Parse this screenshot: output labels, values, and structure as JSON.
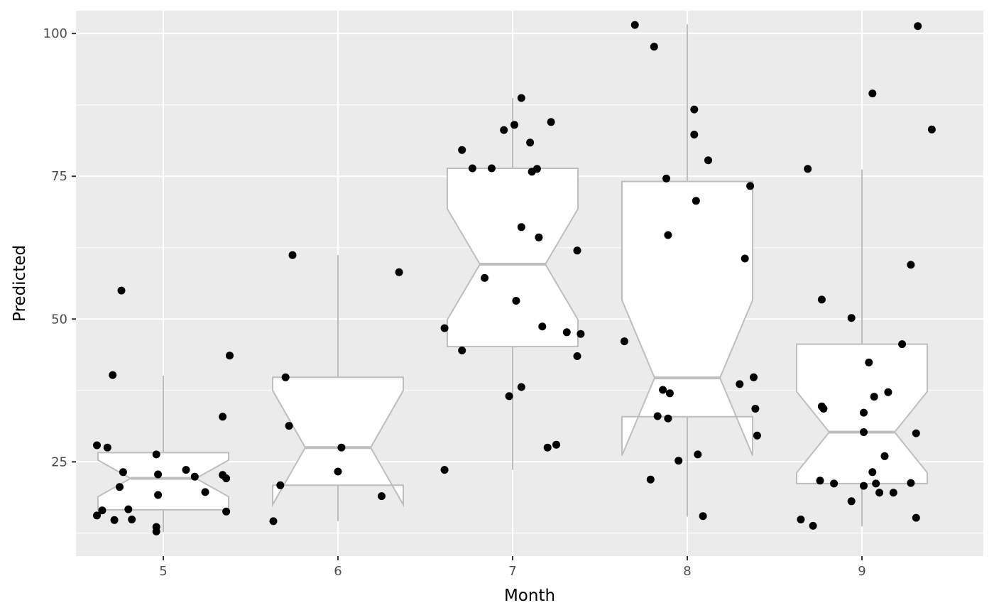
{
  "chart_data": {
    "type": "boxplot",
    "notched": true,
    "title": "",
    "xlabel": "Month",
    "ylabel": "Predicted",
    "categories": [
      "5",
      "6",
      "7",
      "8",
      "9"
    ],
    "y_ticks": [
      25,
      50,
      75,
      100
    ],
    "ylim": [
      8.5,
      104
    ],
    "grid": true,
    "colors": {
      "panel_background": "#ebebeb",
      "grid": "#ffffff",
      "box_fill": "#ffffff",
      "box_stroke": "#bebebe",
      "points": "#000000"
    },
    "boxes": [
      {
        "category": "5",
        "whisker_low": 12.7,
        "q1": 16.6,
        "median": 22.1,
        "q3": 26.6,
        "whisker_high": 40.1,
        "notch_low": 18.9,
        "notch_high": 25.3
      },
      {
        "category": "6",
        "whisker_low": 14.6,
        "q1": 20.9,
        "median": 27.5,
        "q3": 39.8,
        "whisker_high": 61.2,
        "notch_low": 17.5,
        "notch_high": 37.5
      },
      {
        "category": "7",
        "whisker_low": 23.6,
        "q1": 45.2,
        "median": 59.6,
        "q3": 76.4,
        "whisker_high": 88.7,
        "notch_low": 49.9,
        "notch_high": 69.3
      },
      {
        "category": "8",
        "whisker_low": 15.4,
        "q1": 32.9,
        "median": 39.7,
        "q3": 74.1,
        "whisker_high": 101.6,
        "notch_low": 26.1,
        "notch_high": 53.3
      },
      {
        "category": "9",
        "whisker_low": 13.7,
        "q1": 21.2,
        "median": 30.2,
        "q3": 45.6,
        "whisker_high": 76.2,
        "notch_low": 23.1,
        "notch_high": 37.3
      }
    ],
    "points": [
      {
        "category": "5",
        "x": 4.62,
        "y": 27.9
      },
      {
        "category": "5",
        "x": 4.68,
        "y": 27.5
      },
      {
        "category": "5",
        "x": 4.62,
        "y": 15.6
      },
      {
        "category": "5",
        "x": 4.65,
        "y": 16.5
      },
      {
        "category": "5",
        "x": 4.72,
        "y": 14.8
      },
      {
        "category": "5",
        "x": 4.71,
        "y": 40.2
      },
      {
        "category": "5",
        "x": 4.76,
        "y": 55.0
      },
      {
        "category": "5",
        "x": 4.75,
        "y": 20.6
      },
      {
        "category": "5",
        "x": 4.77,
        "y": 23.2
      },
      {
        "category": "5",
        "x": 4.8,
        "y": 16.7
      },
      {
        "category": "5",
        "x": 4.82,
        "y": 14.9
      },
      {
        "category": "5",
        "x": 4.96,
        "y": 26.3
      },
      {
        "category": "5",
        "x": 4.97,
        "y": 22.8
      },
      {
        "category": "5",
        "x": 4.97,
        "y": 19.2
      },
      {
        "category": "5",
        "x": 4.96,
        "y": 13.6
      },
      {
        "category": "5",
        "x": 4.96,
        "y": 12.8
      },
      {
        "category": "5",
        "x": 5.13,
        "y": 23.6
      },
      {
        "category": "5",
        "x": 5.18,
        "y": 22.4
      },
      {
        "category": "5",
        "x": 5.24,
        "y": 19.7
      },
      {
        "category": "5",
        "x": 5.34,
        "y": 32.9
      },
      {
        "category": "5",
        "x": 5.34,
        "y": 22.7
      },
      {
        "category": "5",
        "x": 5.36,
        "y": 22.1
      },
      {
        "category": "5",
        "x": 5.36,
        "y": 16.3
      },
      {
        "category": "5",
        "x": 5.38,
        "y": 43.6
      },
      {
        "category": "6",
        "x": 5.63,
        "y": 14.6
      },
      {
        "category": "6",
        "x": 5.67,
        "y": 20.9
      },
      {
        "category": "6",
        "x": 5.7,
        "y": 39.8
      },
      {
        "category": "6",
        "x": 5.72,
        "y": 31.3
      },
      {
        "category": "6",
        "x": 5.74,
        "y": 61.2
      },
      {
        "category": "6",
        "x": 6.0,
        "y": 23.3
      },
      {
        "category": "6",
        "x": 6.02,
        "y": 27.5
      },
      {
        "category": "6",
        "x": 6.25,
        "y": 19.0
      },
      {
        "category": "6",
        "x": 6.35,
        "y": 58.2
      },
      {
        "category": "7",
        "x": 6.61,
        "y": 48.4
      },
      {
        "category": "7",
        "x": 6.61,
        "y": 23.6
      },
      {
        "category": "7",
        "x": 6.71,
        "y": 79.6
      },
      {
        "category": "7",
        "x": 6.71,
        "y": 44.5
      },
      {
        "category": "7",
        "x": 6.77,
        "y": 76.4
      },
      {
        "category": "7",
        "x": 6.84,
        "y": 57.2
      },
      {
        "category": "7",
        "x": 6.88,
        "y": 76.4
      },
      {
        "category": "7",
        "x": 6.95,
        "y": 83.1
      },
      {
        "category": "7",
        "x": 6.98,
        "y": 36.5
      },
      {
        "category": "7",
        "x": 7.01,
        "y": 84.0
      },
      {
        "category": "7",
        "x": 7.02,
        "y": 53.2
      },
      {
        "category": "7",
        "x": 7.05,
        "y": 88.7
      },
      {
        "category": "7",
        "x": 7.05,
        "y": 66.1
      },
      {
        "category": "7",
        "x": 7.05,
        "y": 38.1
      },
      {
        "category": "7",
        "x": 7.1,
        "y": 80.9
      },
      {
        "category": "7",
        "x": 7.11,
        "y": 75.8
      },
      {
        "category": "7",
        "x": 7.14,
        "y": 76.3
      },
      {
        "category": "7",
        "x": 7.15,
        "y": 64.3
      },
      {
        "category": "7",
        "x": 7.17,
        "y": 48.7
      },
      {
        "category": "7",
        "x": 7.2,
        "y": 27.5
      },
      {
        "category": "7",
        "x": 7.22,
        "y": 84.5
      },
      {
        "category": "7",
        "x": 7.25,
        "y": 28.0
      },
      {
        "category": "7",
        "x": 7.31,
        "y": 47.7
      },
      {
        "category": "7",
        "x": 7.37,
        "y": 43.5
      },
      {
        "category": "7",
        "x": 7.37,
        "y": 62.0
      },
      {
        "category": "7",
        "x": 7.39,
        "y": 47.4
      },
      {
        "category": "8",
        "x": 7.64,
        "y": 46.1
      },
      {
        "category": "8",
        "x": 7.7,
        "y": 101.5
      },
      {
        "category": "8",
        "x": 7.79,
        "y": 21.9
      },
      {
        "category": "8",
        "x": 7.81,
        "y": 97.7
      },
      {
        "category": "8",
        "x": 7.83,
        "y": 33.0
      },
      {
        "category": "8",
        "x": 7.86,
        "y": 37.6
      },
      {
        "category": "8",
        "x": 7.88,
        "y": 74.6
      },
      {
        "category": "8",
        "x": 7.89,
        "y": 64.7
      },
      {
        "category": "8",
        "x": 7.89,
        "y": 32.6
      },
      {
        "category": "8",
        "x": 7.9,
        "y": 37.0
      },
      {
        "category": "8",
        "x": 7.95,
        "y": 25.2
      },
      {
        "category": "8",
        "x": 8.04,
        "y": 86.7
      },
      {
        "category": "8",
        "x": 8.04,
        "y": 82.3
      },
      {
        "category": "8",
        "x": 8.05,
        "y": 70.7
      },
      {
        "category": "8",
        "x": 8.06,
        "y": 26.3
      },
      {
        "category": "8",
        "x": 8.09,
        "y": 15.5
      },
      {
        "category": "8",
        "x": 8.12,
        "y": 77.8
      },
      {
        "category": "8",
        "x": 8.3,
        "y": 38.6
      },
      {
        "category": "8",
        "x": 8.33,
        "y": 60.6
      },
      {
        "category": "8",
        "x": 8.36,
        "y": 73.3
      },
      {
        "category": "8",
        "x": 8.38,
        "y": 39.8
      },
      {
        "category": "8",
        "x": 8.39,
        "y": 34.3
      },
      {
        "category": "8",
        "x": 8.4,
        "y": 29.6
      },
      {
        "category": "9",
        "x": 8.65,
        "y": 14.9
      },
      {
        "category": "9",
        "x": 8.69,
        "y": 76.3
      },
      {
        "category": "9",
        "x": 8.72,
        "y": 13.8
      },
      {
        "category": "9",
        "x": 8.76,
        "y": 21.7
      },
      {
        "category": "9",
        "x": 8.77,
        "y": 34.7
      },
      {
        "category": "9",
        "x": 8.77,
        "y": 53.4
      },
      {
        "category": "9",
        "x": 8.78,
        "y": 34.3
      },
      {
        "category": "9",
        "x": 8.84,
        "y": 21.2
      },
      {
        "category": "9",
        "x": 8.94,
        "y": 18.1
      },
      {
        "category": "9",
        "x": 8.94,
        "y": 50.2
      },
      {
        "category": "9",
        "x": 9.01,
        "y": 33.6
      },
      {
        "category": "9",
        "x": 9.01,
        "y": 30.2
      },
      {
        "category": "9",
        "x": 9.01,
        "y": 20.8
      },
      {
        "category": "9",
        "x": 9.04,
        "y": 42.4
      },
      {
        "category": "9",
        "x": 9.06,
        "y": 89.5
      },
      {
        "category": "9",
        "x": 9.07,
        "y": 36.4
      },
      {
        "category": "9",
        "x": 9.06,
        "y": 23.2
      },
      {
        "category": "9",
        "x": 9.08,
        "y": 21.2
      },
      {
        "category": "9",
        "x": 9.1,
        "y": 19.6
      },
      {
        "category": "9",
        "x": 9.13,
        "y": 26.0
      },
      {
        "category": "9",
        "x": 9.15,
        "y": 37.2
      },
      {
        "category": "9",
        "x": 9.18,
        "y": 19.6
      },
      {
        "category": "9",
        "x": 9.23,
        "y": 45.6
      },
      {
        "category": "9",
        "x": 9.28,
        "y": 59.5
      },
      {
        "category": "9",
        "x": 9.28,
        "y": 21.3
      },
      {
        "category": "9",
        "x": 9.31,
        "y": 30.0
      },
      {
        "category": "9",
        "x": 9.31,
        "y": 15.2
      },
      {
        "category": "9",
        "x": 9.32,
        "y": 101.3
      },
      {
        "category": "9",
        "x": 9.4,
        "y": 83.2
      }
    ]
  }
}
